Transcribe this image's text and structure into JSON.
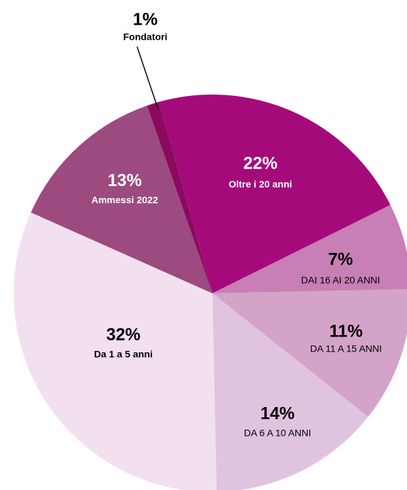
{
  "chart_data": {
    "type": "pie",
    "categories": [
      "Oltre i 20 anni",
      "DAI 16 AI 20 ANNI",
      "DA 11 A 15 ANNI",
      "DA 6 A 10 ANNI",
      "Da 1 a 5 anni",
      "Ammessi 2022",
      "Fondatori"
    ],
    "values": [
      22,
      7,
      11,
      14,
      32,
      13,
      1
    ],
    "value_labels": [
      "22%",
      "7%",
      "11%",
      "14%",
      "32%",
      "13%",
      "1%"
    ],
    "colors": [
      "#a50a7a",
      "#c77fb5",
      "#d4a3c9",
      "#e0c3de",
      "#f2e0ee",
      "#9c4a7f",
      "#8b0a5f"
    ]
  }
}
